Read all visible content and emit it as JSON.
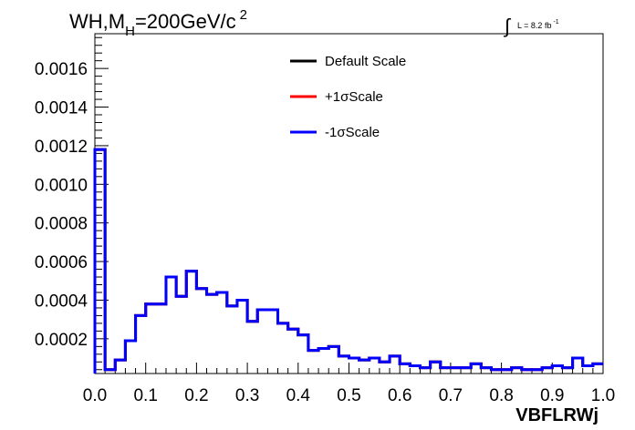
{
  "chart_data": {
    "type": "line",
    "title_parts": {
      "main": "WH,M",
      "sub": "H",
      "rest": "=200GeV/c",
      "sup": "2"
    },
    "lumi_parts": {
      "integral": "∫",
      "text": "L = 8.2 fb",
      "sup": "-1"
    },
    "xlabel": "VBFLRWj",
    "ylabel": "",
    "xlim": [
      0.0,
      1.0
    ],
    "ylim": [
      2e-05,
      0.00178
    ],
    "x_ticks": [
      "0.0",
      "0.1",
      "0.2",
      "0.3",
      "0.4",
      "0.5",
      "0.6",
      "0.7",
      "0.8",
      "0.9",
      "1.0"
    ],
    "y_ticks": [
      "0.0002",
      "0.0004",
      "0.0006",
      "0.0008",
      "0.0010",
      "0.0012",
      "0.0014",
      "0.0016"
    ],
    "legend_position": "top-center",
    "grid": false,
    "bin_edges": [
      0.0,
      0.02,
      0.04,
      0.06,
      0.08,
      0.1,
      0.12,
      0.14,
      0.16,
      0.18,
      0.2,
      0.22,
      0.24,
      0.26,
      0.28,
      0.3,
      0.32,
      0.34,
      0.36,
      0.38,
      0.4,
      0.42,
      0.44,
      0.46,
      0.48,
      0.5,
      0.52,
      0.54,
      0.56,
      0.58,
      0.6,
      0.62,
      0.64,
      0.66,
      0.68,
      0.7,
      0.72,
      0.74,
      0.76,
      0.78,
      0.8,
      0.82,
      0.84,
      0.86,
      0.88,
      0.9,
      0.92,
      0.94,
      0.96,
      0.98,
      1.0
    ],
    "series": [
      {
        "name": "Default Scale",
        "color": "#000000",
        "values": [
          0.00118,
          4e-05,
          9e-05,
          0.00019,
          0.00032,
          0.00038,
          0.00038,
          0.00052,
          0.00042,
          0.00055,
          0.00046,
          0.00043,
          0.00044,
          0.00037,
          0.0004,
          0.00029,
          0.00035,
          0.00035,
          0.00028,
          0.00025,
          0.00022,
          0.00014,
          0.00015,
          0.00016,
          0.00011,
          0.0001,
          9e-05,
          0.0001,
          8e-05,
          0.00011,
          7e-05,
          6e-05,
          5e-05,
          8e-05,
          5e-05,
          5e-05,
          5e-05,
          7e-05,
          5e-05,
          4e-05,
          4e-05,
          5e-05,
          4e-05,
          4e-05,
          5e-05,
          6e-05,
          5e-05,
          0.0001,
          6e-05,
          7e-05
        ]
      },
      {
        "name": "+1σScale",
        "color": "#ff0000",
        "values": [
          0.00118,
          4e-05,
          9e-05,
          0.00019,
          0.00032,
          0.00038,
          0.00038,
          0.00052,
          0.00042,
          0.00055,
          0.00046,
          0.00043,
          0.00044,
          0.00037,
          0.0004,
          0.00029,
          0.00035,
          0.00035,
          0.00028,
          0.00025,
          0.00022,
          0.00014,
          0.00015,
          0.00016,
          0.00011,
          0.0001,
          9e-05,
          0.0001,
          8e-05,
          0.00011,
          7e-05,
          6e-05,
          5e-05,
          8e-05,
          5e-05,
          5e-05,
          5e-05,
          7e-05,
          5e-05,
          4e-05,
          4e-05,
          5e-05,
          4e-05,
          4e-05,
          5e-05,
          6e-05,
          5e-05,
          0.0001,
          6e-05,
          7e-05
        ]
      },
      {
        "name": "-1σScale",
        "color": "#0000ff",
        "values": [
          0.00118,
          4e-05,
          9e-05,
          0.00019,
          0.00032,
          0.00038,
          0.00038,
          0.00052,
          0.00042,
          0.00055,
          0.00046,
          0.00043,
          0.00044,
          0.00037,
          0.0004,
          0.00029,
          0.00035,
          0.00035,
          0.00028,
          0.00025,
          0.00022,
          0.00014,
          0.00015,
          0.00016,
          0.00011,
          0.0001,
          9e-05,
          0.0001,
          8e-05,
          0.00011,
          7e-05,
          6e-05,
          5e-05,
          8e-05,
          5e-05,
          5e-05,
          5e-05,
          7e-05,
          5e-05,
          4e-05,
          4e-05,
          5e-05,
          4e-05,
          4e-05,
          5e-05,
          6e-05,
          5e-05,
          0.0001,
          6e-05,
          7e-05
        ]
      }
    ]
  }
}
